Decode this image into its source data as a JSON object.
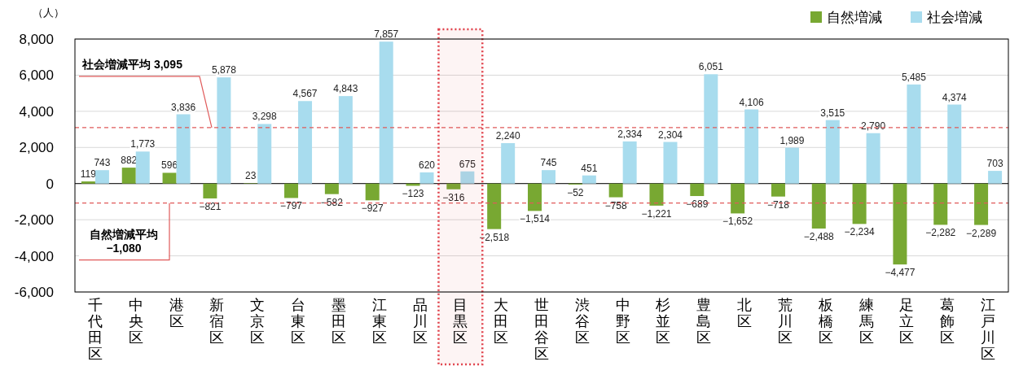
{
  "chart_data": {
    "type": "bar",
    "ylabel": "（人）",
    "categories": [
      "千代田区",
      "中央区",
      "港区",
      "新宿区",
      "文京区",
      "台東区",
      "墨田区",
      "江東区",
      "品川区",
      "目黒区",
      "大田区",
      "世田谷区",
      "渋谷区",
      "中野区",
      "杉並区",
      "豊島区",
      "北区",
      "荒川区",
      "板橋区",
      "練馬区",
      "足立区",
      "葛飾区",
      "江戸川区"
    ],
    "series": [
      {
        "name": "自然増減",
        "color": "#78a832",
        "values": [
          119,
          882,
          596,
          -821,
          23,
          -797,
          -582,
          -927,
          -123,
          -316,
          -2518,
          -1514,
          -52,
          -758,
          -1221,
          -689,
          -1652,
          -718,
          -2488,
          -2234,
          -4477,
          -2282,
          -2289
        ],
        "value_labels": [
          "119",
          "882",
          "596",
          "−821",
          "23",
          "−797",
          "−582",
          "−927",
          "−123",
          "−316",
          "−2,518",
          "−1,514",
          "−52",
          "−758",
          "−1,221",
          "−689",
          "−1,652",
          "−718",
          "−2,488",
          "−2,234",
          "−4,477",
          "−2,282",
          "−2,289"
        ]
      },
      {
        "name": "社会増減",
        "color": "#a8dcee",
        "values": [
          743,
          1773,
          3836,
          5878,
          3298,
          4567,
          4843,
          7857,
          620,
          675,
          2240,
          745,
          451,
          2334,
          2304,
          6051,
          4106,
          1989,
          3515,
          2790,
          5485,
          4374,
          703
        ],
        "value_labels": [
          "743",
          "1,773",
          "3,836",
          "5,878",
          "3,298",
          "4,567",
          "4,843",
          "7,857",
          "620",
          "675",
          "2,240",
          "745",
          "451",
          "2,334",
          "2,304",
          "6,051",
          "4,106",
          "1,989",
          "3,515",
          "2,790",
          "5,485",
          "4,374",
          "703"
        ]
      }
    ],
    "ylim": [
      -6000,
      8000
    ],
    "yticks": [
      {
        "value": -6000,
        "label": "-6,000"
      },
      {
        "value": -4000,
        "label": "-4,000"
      },
      {
        "value": -2000,
        "label": "-2,000"
      },
      0,
      {
        "value": 2000,
        "label": "2,000"
      },
      {
        "value": 4000,
        "label": "4,000"
      },
      {
        "value": 6000,
        "label": "6,000"
      },
      {
        "value": 8000,
        "label": "8,000"
      }
    ],
    "grid": "y",
    "legend": "top right",
    "ref_lines": [
      {
        "axis": "y",
        "value": 3095,
        "label": "社会増減平均 3,095",
        "color": "#e05a5a",
        "line_style": "dashed"
      },
      {
        "axis": "y",
        "value": -1080,
        "label": "自然増減平均\n−1,080",
        "color": "#e05a5a",
        "line_style": "dashed"
      }
    ],
    "bands": [
      {
        "axis": "x",
        "from": "目黒区",
        "to": "目黒区",
        "color": "#e0404a"
      }
    ]
  }
}
